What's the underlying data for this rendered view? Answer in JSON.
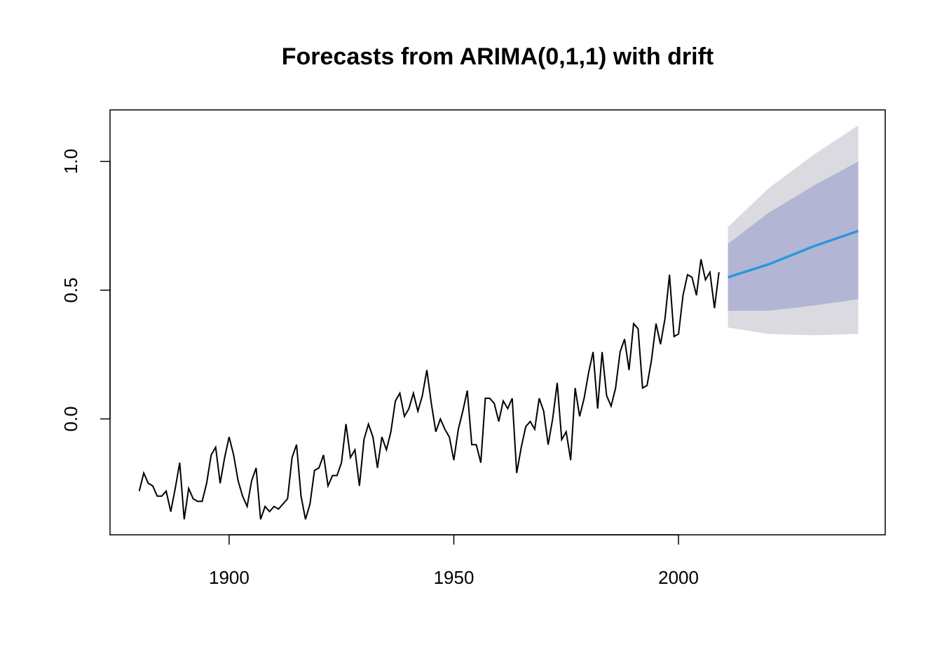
{
  "chart_data": {
    "type": "line",
    "title": "Forecasts from ARIMA(0,1,1) with drift",
    "xlabel": "",
    "ylabel": "",
    "xlim": [
      1873.5,
      2046
    ],
    "ylim": [
      -0.45,
      1.2
    ],
    "x_ticks": [
      1900,
      1950,
      2000
    ],
    "x_tick_labels": [
      "1900",
      "1950",
      "2000"
    ],
    "y_ticks": [
      0.0,
      0.5,
      1.0
    ],
    "y_tick_labels": [
      "0.0",
      "0.5",
      "1.0"
    ],
    "grid": false,
    "legend": "none",
    "colors": {
      "observed": "#000000",
      "forecast_mean": "#2a96e0",
      "interval_80": "#b2b6d4",
      "interval_95": "#dadae0"
    },
    "observed": {
      "start_year": 1880,
      "values": [
        -0.28,
        -0.21,
        -0.25,
        -0.26,
        -0.3,
        -0.3,
        -0.28,
        -0.36,
        -0.27,
        -0.17,
        -0.39,
        -0.27,
        -0.31,
        -0.32,
        -0.32,
        -0.25,
        -0.14,
        -0.11,
        -0.25,
        -0.15,
        -0.07,
        -0.14,
        -0.24,
        -0.3,
        -0.34,
        -0.24,
        -0.19,
        -0.39,
        -0.34,
        -0.36,
        -0.34,
        -0.35,
        -0.33,
        -0.31,
        -0.15,
        -0.1,
        -0.3,
        -0.39,
        -0.33,
        -0.2,
        -0.19,
        -0.14,
        -0.26,
        -0.22,
        -0.22,
        -0.17,
        -0.02,
        -0.15,
        -0.12,
        -0.26,
        -0.08,
        -0.02,
        -0.07,
        -0.19,
        -0.07,
        -0.12,
        -0.05,
        0.07,
        0.1,
        0.01,
        0.04,
        0.1,
        0.03,
        0.09,
        0.19,
        0.06,
        -0.05,
        0.0,
        -0.04,
        -0.07,
        -0.16,
        -0.04,
        0.03,
        0.11,
        -0.1,
        -0.1,
        -0.17,
        0.08,
        0.08,
        0.06,
        -0.01,
        0.07,
        0.04,
        0.08,
        -0.21,
        -0.11,
        -0.03,
        -0.01,
        -0.04,
        0.08,
        0.03,
        -0.1,
        0.0,
        0.14,
        -0.08,
        -0.05,
        -0.16,
        0.12,
        0.01,
        0.08,
        0.18,
        0.26,
        0.04,
        0.26,
        0.09,
        0.05,
        0.12,
        0.26,
        0.31,
        0.19,
        0.37,
        0.35,
        0.12,
        0.13,
        0.23,
        0.37,
        0.29,
        0.39,
        0.56,
        0.32,
        0.33,
        0.48,
        0.56,
        0.55,
        0.48,
        0.62,
        0.54,
        0.57,
        0.43,
        0.57
      ]
    },
    "forecast": {
      "x": [
        2011,
        2020,
        2030,
        2040
      ],
      "mean": [
        0.55,
        0.6,
        0.67,
        0.73
      ],
      "lo80": [
        0.42,
        0.42,
        0.44,
        0.465
      ],
      "hi80": [
        0.68,
        0.8,
        0.905,
        1.0
      ],
      "lo95": [
        0.355,
        0.33,
        0.325,
        0.33
      ],
      "hi95": [
        0.745,
        0.895,
        1.025,
        1.14
      ]
    }
  }
}
